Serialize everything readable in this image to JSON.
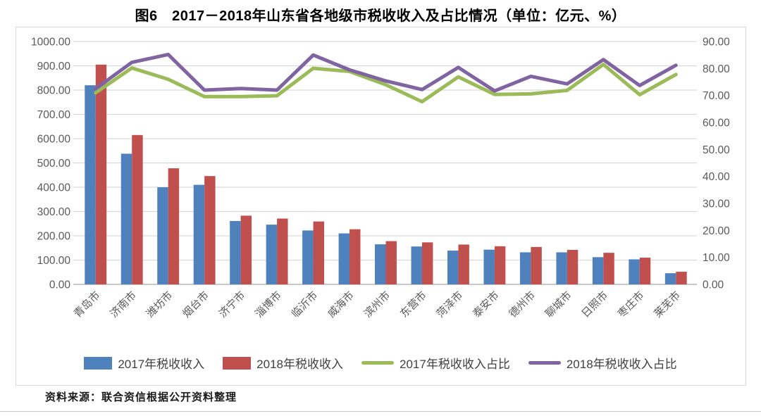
{
  "title": "图6　2017－2018年山东省各地级市税收收入及占比情况（单位：亿元、%）",
  "footer": {
    "source": "资料来源：联合资信根据公开资料整理"
  },
  "colors": {
    "bar_2017": "#4F81BD",
    "bar_2018": "#C0504D",
    "line_2017_ratio": "#9BBB59",
    "line_2018_ratio": "#8064A2",
    "grid": "#d9d9d9",
    "axis_line": "#a6a6a6",
    "tick_text": "#595959"
  },
  "chart_data": {
    "type": "bar",
    "subtype": "combo-bar-line",
    "grid": true,
    "legend_position": "bottom",
    "categories": [
      "青岛市",
      "济南市",
      "潍坊市",
      "烟台市",
      "济宁市",
      "淄博市",
      "临沂市",
      "威海市",
      "滨州市",
      "东营市",
      "菏泽市",
      "泰安市",
      "德州市",
      "聊城市",
      "日照市",
      "枣庄市",
      "莱芜市"
    ],
    "left_axis": {
      "min": 0,
      "max": 1000,
      "step": 100,
      "decimals": 2,
      "unit": "亿元"
    },
    "right_axis": {
      "min": 0,
      "max": 90,
      "step": 10,
      "decimals": 2,
      "unit": "%"
    },
    "series": [
      {
        "name": "2017年税收收入",
        "kind": "bar",
        "axis": "left",
        "color": "#4F81BD",
        "values": [
          820,
          538,
          400,
          410,
          261,
          246,
          222,
          210,
          165,
          156,
          139,
          143,
          132,
          132,
          112,
          103,
          46
        ]
      },
      {
        "name": "2018年税收收入",
        "kind": "bar",
        "axis": "left",
        "color": "#C0504D",
        "values": [
          905,
          615,
          478,
          446,
          283,
          271,
          259,
          227,
          178,
          173,
          164,
          157,
          154,
          142,
          130,
          110,
          52
        ]
      },
      {
        "name": "2017年税收收入占比",
        "kind": "line",
        "axis": "right",
        "color": "#9BBB59",
        "values": [
          71.0,
          80.2,
          76.0,
          69.6,
          69.6,
          69.9,
          80.1,
          78.9,
          74.0,
          67.7,
          76.9,
          70.4,
          70.6,
          71.9,
          81.5,
          70.3,
          77.8
        ]
      },
      {
        "name": "2018年税收收入占比",
        "kind": "line",
        "axis": "right",
        "color": "#8064A2",
        "values": [
          72.5,
          82.3,
          85.2,
          72.0,
          72.6,
          72.0,
          85.0,
          79.5,
          75.4,
          72.2,
          80.4,
          71.7,
          77.1,
          74.3,
          83.3,
          73.7,
          81.2
        ]
      }
    ]
  }
}
